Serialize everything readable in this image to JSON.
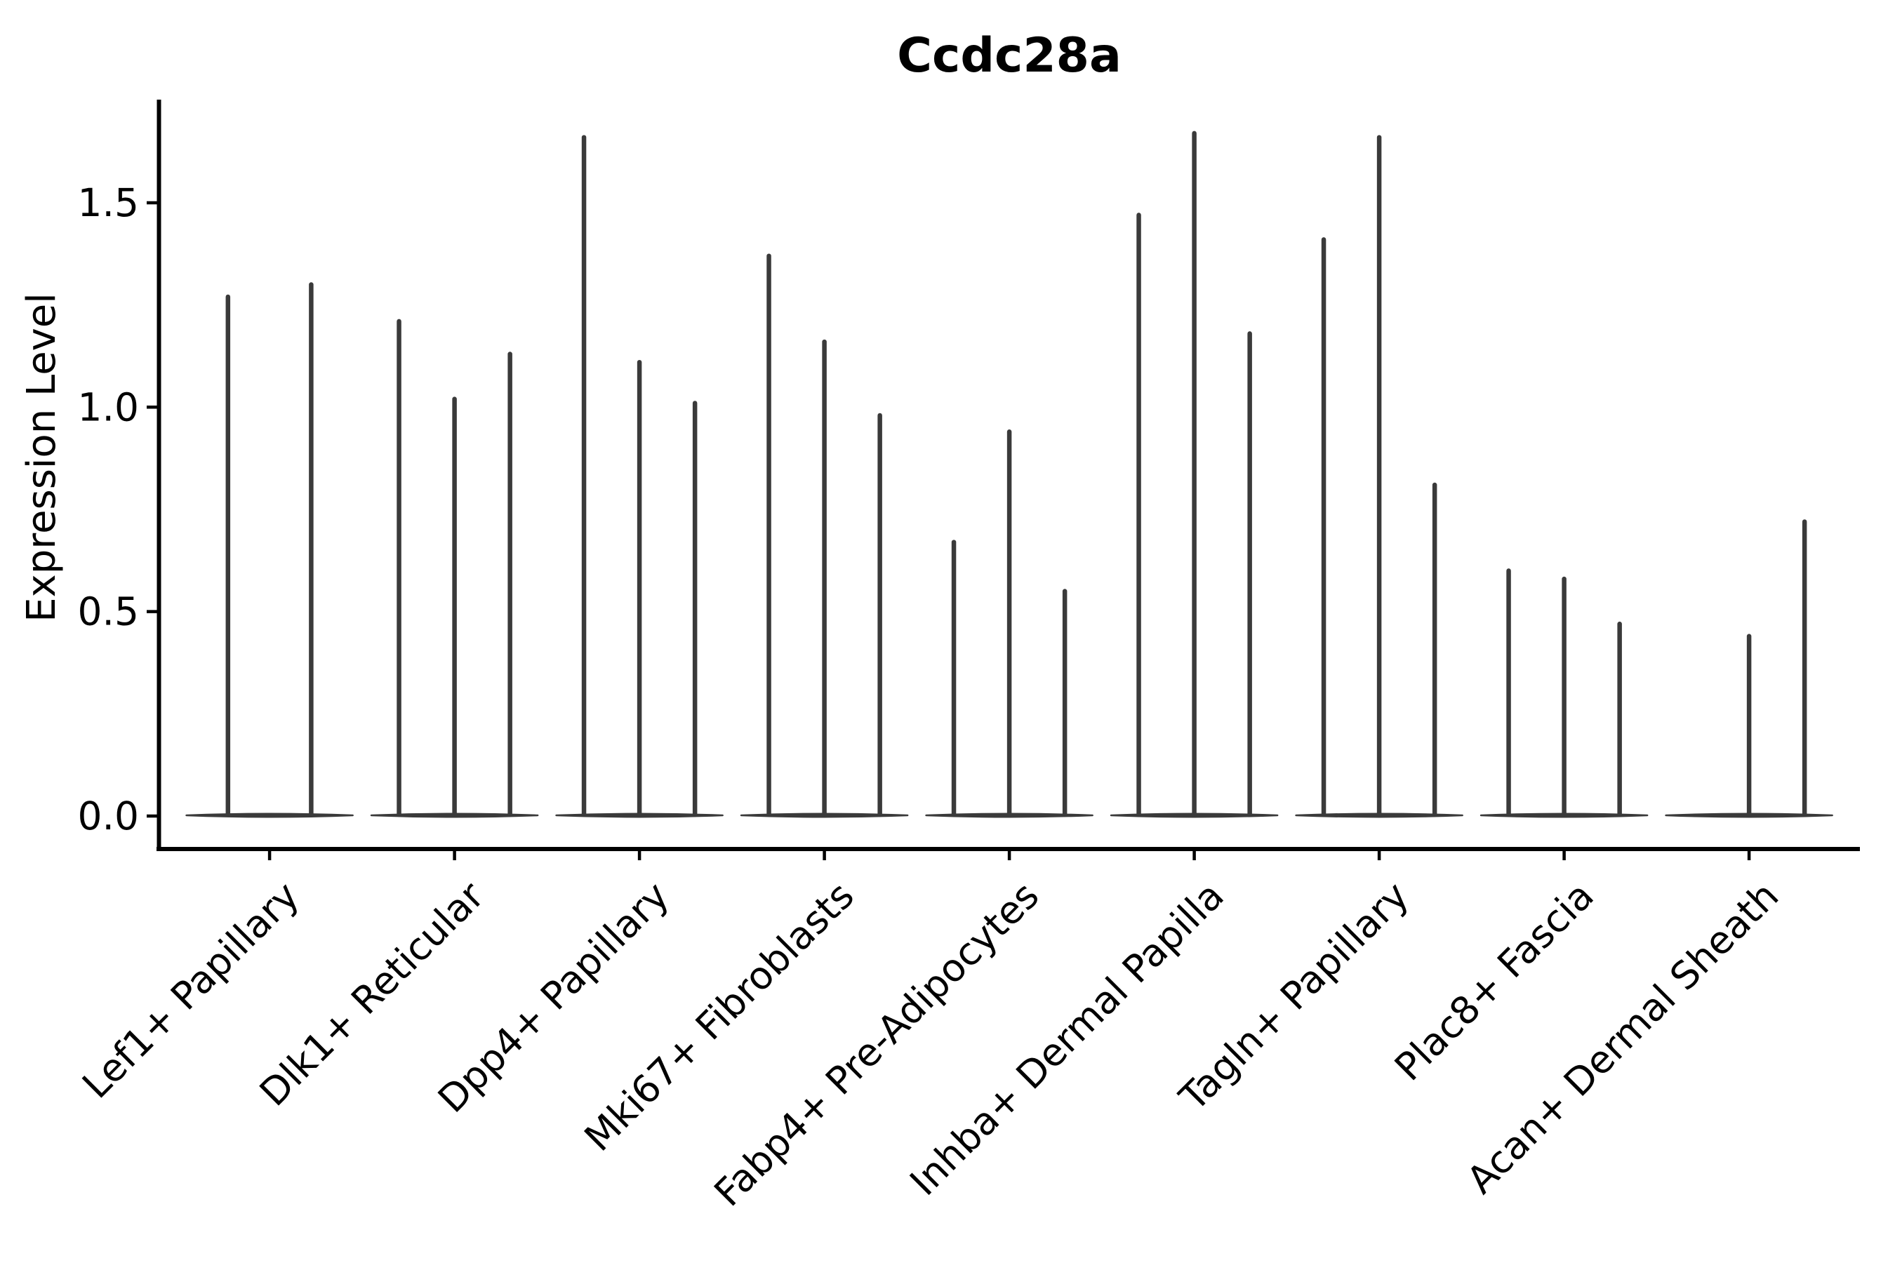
{
  "chart_data": {
    "type": "violin",
    "title": "Ccdc28a",
    "ylabel": "Expression Level",
    "ytick_labels": [
      "0.0",
      "0.5",
      "1.0",
      "1.5"
    ],
    "ytick_values": [
      0.0,
      0.5,
      1.0,
      1.5
    ],
    "ylim": [
      -0.08,
      1.75
    ],
    "grid": false,
    "legend_position": "none",
    "violin_style": "collapsed-base-with-thin-max-spike",
    "categories": [
      "Lef1+ Papillary",
      "Dlk1+ Reticular",
      "Dpp4+ Papillary",
      "Mki67+ Fibroblasts",
      "Fabp4+ Pre-Adipocytes",
      "Inhba+ Dermal Papilla",
      "Tagln+ Papillary",
      "Plac8+ Fascia",
      "Acan+ Dermal Sheath"
    ],
    "groups": [
      {
        "category": "Lef1+ Papillary",
        "violins": [
          {
            "pos": -0.225,
            "max": 1.27
          },
          {
            "pos": 0.225,
            "max": 1.3
          }
        ]
      },
      {
        "category": "Dlk1+ Reticular",
        "violins": [
          {
            "pos": -0.3,
            "max": 1.21
          },
          {
            "pos": 0,
            "max": 1.02
          },
          {
            "pos": 0.3,
            "max": 1.13
          }
        ]
      },
      {
        "category": "Dpp4+ Papillary",
        "violins": [
          {
            "pos": -0.3,
            "max": 1.66
          },
          {
            "pos": 0,
            "max": 1.11
          },
          {
            "pos": 0.3,
            "max": 1.01
          }
        ]
      },
      {
        "category": "Mki67+ Fibroblasts",
        "violins": [
          {
            "pos": -0.3,
            "max": 1.37
          },
          {
            "pos": 0,
            "max": 1.16
          },
          {
            "pos": 0.3,
            "max": 0.98
          }
        ]
      },
      {
        "category": "Fabp4+ Pre-Adipocytes",
        "violins": [
          {
            "pos": -0.3,
            "max": 0.67
          },
          {
            "pos": 0,
            "max": 0.94
          },
          {
            "pos": 0.3,
            "max": 0.55
          }
        ]
      },
      {
        "category": "Inhba+ Dermal Papilla",
        "violins": [
          {
            "pos": -0.3,
            "max": 1.47
          },
          {
            "pos": 0,
            "max": 1.67
          },
          {
            "pos": 0.3,
            "max": 1.18
          }
        ]
      },
      {
        "category": "Tagln+ Papillary",
        "violins": [
          {
            "pos": -0.3,
            "max": 1.41
          },
          {
            "pos": 0,
            "max": 1.66
          },
          {
            "pos": 0.3,
            "max": 0.81
          }
        ]
      },
      {
        "category": "Plac8+ Fascia",
        "violins": [
          {
            "pos": -0.3,
            "max": 0.6
          },
          {
            "pos": 0,
            "max": 0.58
          },
          {
            "pos": 0.3,
            "max": 0.47
          }
        ]
      },
      {
        "category": "Acan+ Dermal Sheath",
        "violins": [
          {
            "pos": 0,
            "max": 0.44
          },
          {
            "pos": 0.3,
            "max": 0.72
          }
        ]
      }
    ],
    "base_halfwidth": 0.45,
    "colors": {
      "violin": "#3a3a3a",
      "axis": "#000000",
      "text": "#000000",
      "background": "#ffffff"
    }
  }
}
